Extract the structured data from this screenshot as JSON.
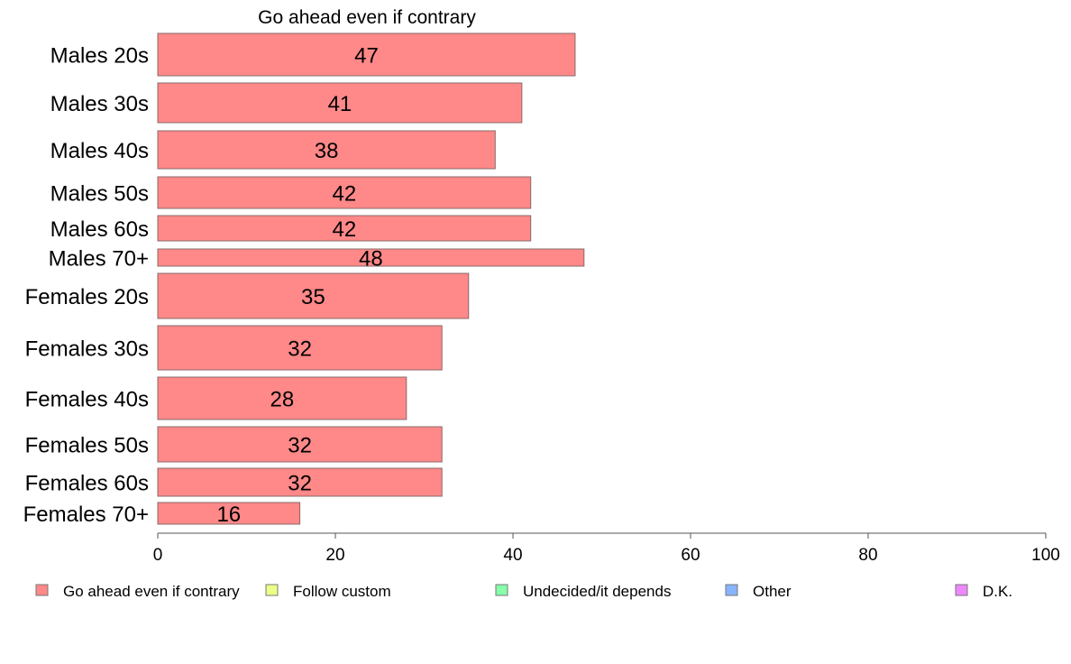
{
  "chart_data": {
    "type": "bar",
    "orientation": "horizontal",
    "title": "Go ahead even if contrary",
    "categories": [
      "Males 20s",
      "Males 30s",
      "Males 40s",
      "Males 50s",
      "Males 60s",
      "Males 70+",
      "Females 20s",
      "Females 30s",
      "Females 40s",
      "Females 50s",
      "Females 60s",
      "Females 70+"
    ],
    "series": [
      {
        "name": "Go ahead even if contrary",
        "color": "#ff8888",
        "values": [
          47,
          41,
          38,
          42,
          42,
          48,
          35,
          32,
          28,
          32,
          32,
          16
        ],
        "labels": [
          "47",
          "41",
          "38",
          "42",
          "42",
          "48",
          "35",
          "32",
          "28",
          "32",
          "32",
          "16"
        ]
      }
    ],
    "xlim": [
      0,
      100
    ],
    "xticks": [
      "0",
      "20",
      "40",
      "60",
      "80",
      "100"
    ],
    "xlabel": "",
    "ylabel": "",
    "grid": false,
    "legend_position": "bottom",
    "legend": [
      {
        "label": "Go ahead even if contrary",
        "color": "#ff8888"
      },
      {
        "label": "Follow custom",
        "color": "#eeff88"
      },
      {
        "label": "Undecided/it depends",
        "color": "#88ffaa"
      },
      {
        "label": "Other",
        "color": "#88b4ff"
      },
      {
        "label": "D.K.",
        "color": "#ee88ff"
      }
    ]
  }
}
